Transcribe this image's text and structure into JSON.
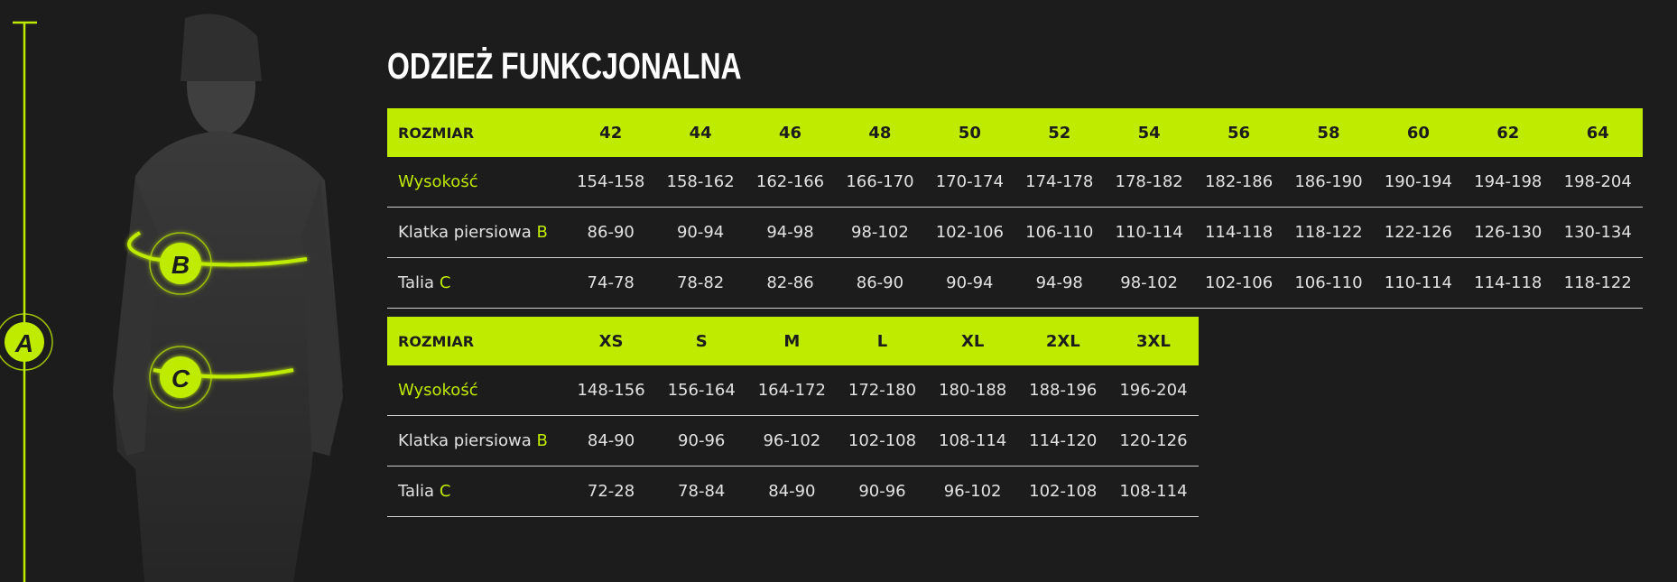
{
  "title": "ODZIEŻ FUNKCJONALNA",
  "colors": {
    "accent": "#bfeb00",
    "background": "#1c1c1c"
  },
  "figure": {
    "markers": [
      "A",
      "B",
      "C"
    ]
  },
  "tables": [
    {
      "header_label": "ROZMIAR",
      "sizes": [
        "42",
        "44",
        "46",
        "48",
        "50",
        "52",
        "54",
        "56",
        "58",
        "60",
        "62",
        "64"
      ],
      "rows": [
        {
          "label": "Wysokość",
          "marker": "",
          "values": [
            "154-158",
            "158-162",
            "162-166",
            "166-170",
            "170-174",
            "174-178",
            "178-182",
            "182-186",
            "186-190",
            "190-194",
            "194-198",
            "198-204"
          ]
        },
        {
          "label": "Klatka piersiowa",
          "marker": "B",
          "values": [
            "86-90",
            "90-94",
            "94-98",
            "98-102",
            "102-106",
            "106-110",
            "110-114",
            "114-118",
            "118-122",
            "122-126",
            "126-130",
            "130-134"
          ]
        },
        {
          "label": "Talia",
          "marker": "C",
          "values": [
            "74-78",
            "78-82",
            "82-86",
            "86-90",
            "90-94",
            "94-98",
            "98-102",
            "102-106",
            "106-110",
            "110-114",
            "114-118",
            "118-122"
          ]
        }
      ]
    },
    {
      "header_label": "ROZMIAR",
      "sizes": [
        "XS",
        "S",
        "M",
        "L",
        "XL",
        "2XL",
        "3XL"
      ],
      "rows": [
        {
          "label": "Wysokość",
          "marker": "",
          "values": [
            "148-156",
            "156-164",
            "164-172",
            "172-180",
            "180-188",
            "188-196",
            "196-204"
          ]
        },
        {
          "label": "Klatka piersiowa",
          "marker": "B",
          "values": [
            "84-90",
            "90-96",
            "96-102",
            "102-108",
            "108-114",
            "114-120",
            "120-126"
          ]
        },
        {
          "label": "Talia",
          "marker": "C",
          "values": [
            "72-28",
            "78-84",
            "84-90",
            "90-96",
            "96-102",
            "102-108",
            "108-114"
          ]
        }
      ]
    }
  ]
}
